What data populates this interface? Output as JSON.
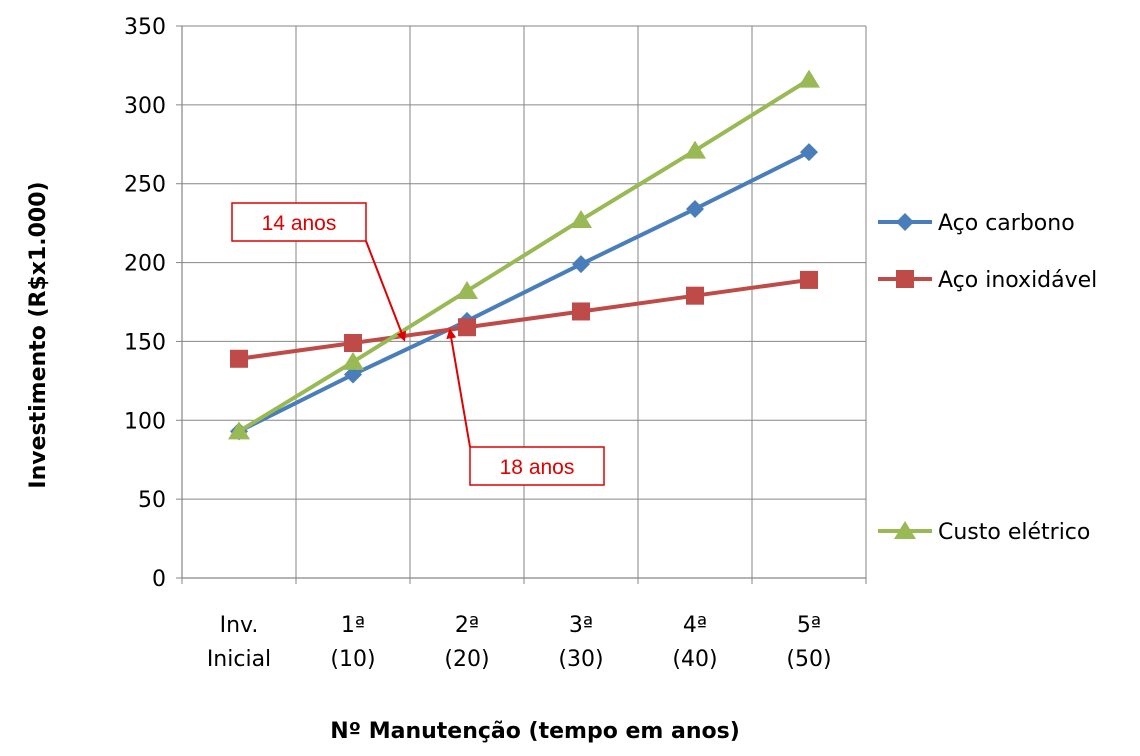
{
  "chart_data": {
    "type": "line",
    "categories": [
      [
        "Inv.",
        "Inicial"
      ],
      [
        "1ª",
        "(10)"
      ],
      [
        "2ª",
        "(20)"
      ],
      [
        "3ª",
        "(30)"
      ],
      [
        "4ª",
        "(40)"
      ],
      [
        "5ª",
        "(50)"
      ]
    ],
    "series": [
      {
        "name": "Aço carbono",
        "values": [
          93,
          129,
          163,
          199,
          234,
          270
        ],
        "color": "#4a7ebb",
        "marker": "diamond"
      },
      {
        "name": "Aço inoxidável",
        "values": [
          139,
          149,
          159,
          169,
          179,
          189
        ],
        "color": "#be4b48",
        "marker": "square"
      },
      {
        "name": "Custo elétrico",
        "values": [
          93,
          137,
          182,
          227,
          271,
          316
        ],
        "color": "#98b954",
        "marker": "triangle"
      }
    ],
    "ylabel": "Investimento (R$x1.000)",
    "xlabel": "Nº Manutenção (tempo em anos)",
    "ylim": [
      0,
      350
    ],
    "yticks": [
      0,
      50,
      100,
      150,
      200,
      250,
      300,
      350
    ],
    "grid": true,
    "legend": "right",
    "annotations": [
      {
        "text": "14 anos",
        "target_category": 1.45,
        "target_value": 151
      },
      {
        "text": "18 anos",
        "target_category": 1.85,
        "target_value": 157
      }
    ],
    "annotation_color": "#e00000"
  }
}
